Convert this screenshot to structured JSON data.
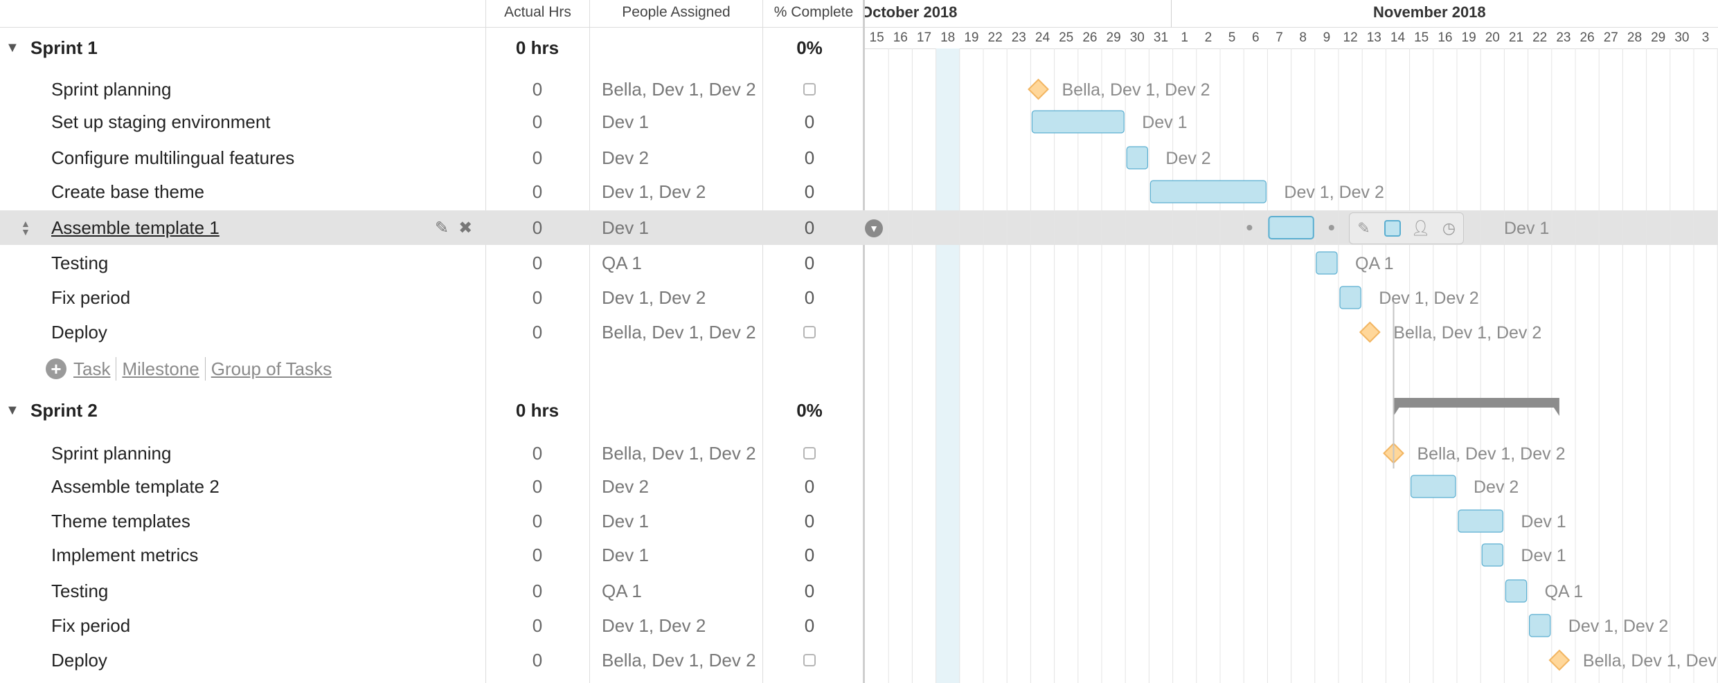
{
  "columns": {
    "actual_hrs": "Actual Hrs",
    "people_assigned": "People Assigned",
    "pct_complete": "% Complete"
  },
  "timeline": {
    "months": [
      "October 2018",
      "November 2018"
    ],
    "days": [
      "15",
      "16",
      "17",
      "18",
      "19",
      "22",
      "23",
      "24",
      "25",
      "26",
      "29",
      "30",
      "31",
      "1",
      "2",
      "5",
      "6",
      "7",
      "8",
      "9",
      "12",
      "13",
      "14",
      "15",
      "16",
      "19",
      "20",
      "21",
      "22",
      "23",
      "26",
      "27",
      "28",
      "29",
      "30",
      "3"
    ],
    "today_day": "18"
  },
  "colors": {
    "task_bar": "#bfe3ef",
    "task_border": "#5aaed0",
    "milestone": "#ffd79a",
    "milestone_border": "#f2b561",
    "today_column": "#e6f3f8",
    "group_bar": "#8c8c8c",
    "selected_row": "#e3e3e3"
  },
  "add_row": {
    "task": "Task",
    "milestone": "Milestone",
    "group": "Group of Tasks"
  },
  "sprint1": {
    "name": "Sprint 1",
    "hrs": "0 hrs",
    "pct": "0%",
    "tasks": [
      {
        "name": "Sprint planning",
        "hrs": "0",
        "people": "Bella, Dev 1, Dev 2",
        "pct": "",
        "type": "milestone",
        "start": "24"
      },
      {
        "name": "Set up staging environment",
        "hrs": "0",
        "people": "Dev 1",
        "pct": "0",
        "type": "task",
        "start": "24",
        "end": "29"
      },
      {
        "name": "Configure multilingual features",
        "hrs": "0",
        "people": "Dev 2",
        "pct": "0",
        "type": "task",
        "start": "30",
        "end": "30"
      },
      {
        "name": "Create base theme",
        "hrs": "0",
        "people": "Dev 1, Dev 2",
        "pct": "0",
        "type": "task",
        "start": "31",
        "end": "6"
      },
      {
        "name": "Assemble template 1",
        "hrs": "0",
        "people": "Dev 1",
        "pct": "0",
        "type": "task",
        "start": "7",
        "end": "8",
        "selected": true
      },
      {
        "name": "Testing",
        "hrs": "0",
        "people": "QA 1",
        "pct": "0",
        "type": "task",
        "start": "9",
        "end": "9"
      },
      {
        "name": "Fix period",
        "hrs": "0",
        "people": "Dev 1, Dev 2",
        "pct": "0",
        "type": "task",
        "start": "12",
        "end": "12"
      },
      {
        "name": "Deploy",
        "hrs": "0",
        "people": "Bella, Dev 1, Dev 2",
        "pct": "",
        "type": "milestone",
        "start": "13"
      }
    ]
  },
  "sprint2": {
    "name": "Sprint 2",
    "hrs": "0 hrs",
    "pct": "0%",
    "tasks": [
      {
        "name": "Sprint planning",
        "hrs": "0",
        "people": "Bella, Dev 1, Dev 2",
        "pct": "",
        "type": "milestone",
        "start": "14"
      },
      {
        "name": "Assemble template 2",
        "hrs": "0",
        "people": "Dev 2",
        "pct": "0",
        "type": "task",
        "start": "15",
        "end": "16"
      },
      {
        "name": "Theme templates",
        "hrs": "0",
        "people": "Dev 1",
        "pct": "0",
        "type": "task",
        "start": "19",
        "end": "20"
      },
      {
        "name": "Implement metrics",
        "hrs": "0",
        "people": "Dev 1",
        "pct": "0",
        "type": "task",
        "start": "20",
        "end": "20"
      },
      {
        "name": "Testing",
        "hrs": "0",
        "people": "QA 1",
        "pct": "0",
        "type": "task",
        "start": "21",
        "end": "21"
      },
      {
        "name": "Fix period",
        "hrs": "0",
        "people": "Dev 1, Dev 2",
        "pct": "0",
        "type": "task",
        "start": "22",
        "end": "22"
      },
      {
        "name": "Deploy",
        "hrs": "0",
        "people": "Bella, Dev 1, Dev 2",
        "pct": "",
        "type": "milestone",
        "start": "23"
      }
    ]
  }
}
